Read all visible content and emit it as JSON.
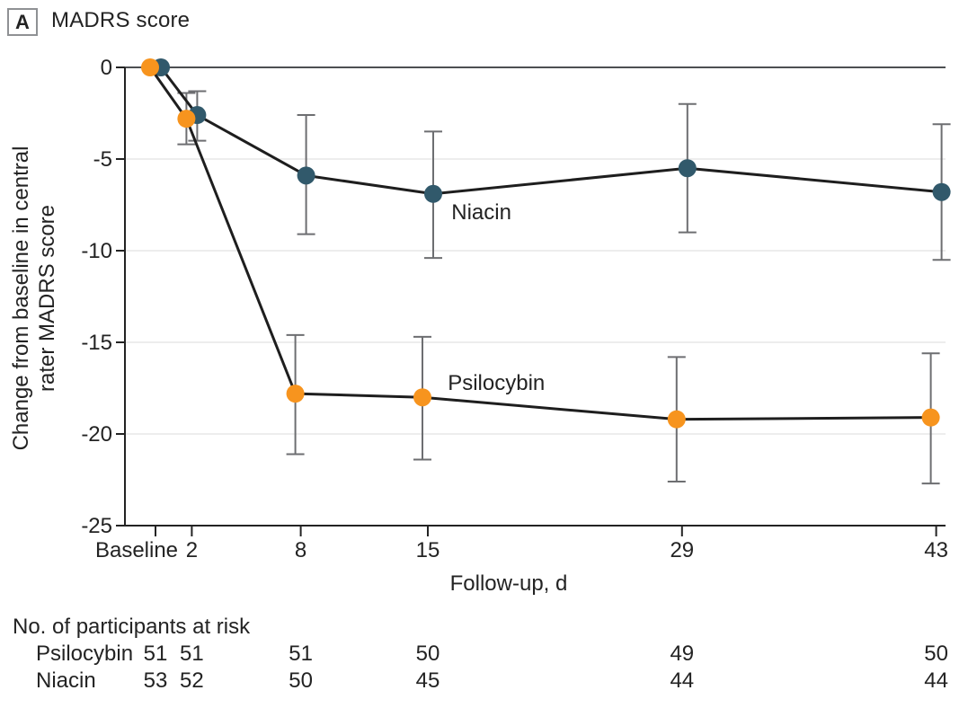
{
  "panel": {
    "label": "A",
    "title": "MADRS score"
  },
  "chart_data": {
    "type": "line",
    "x": [
      0,
      2,
      8,
      15,
      29,
      43
    ],
    "x_tick_labels": [
      "Baseline",
      "2",
      "8",
      "15",
      "29",
      "43"
    ],
    "xlabel": "Follow-up, d",
    "ylabel": "Change from baseline in central rater MADRS score",
    "ylabel_lines": [
      "Change from baseline in central",
      "rater MADRS score"
    ],
    "ylim": [
      -25,
      0
    ],
    "yticks": [
      0,
      -5,
      -10,
      -15,
      -20,
      -25
    ],
    "grid": "horizontal-light",
    "legend": "inline-labels",
    "line_color": "#1e1e1e",
    "error_bar_color": "#6d6e71",
    "zero_line_color": "#4d4f52",
    "gridline_color": "#e7e7e7",
    "axis_color": "#232323",
    "series": [
      {
        "name": "Niacin",
        "marker_color": "#31596b",
        "values": [
          0,
          -2.6,
          -5.9,
          -6.9,
          -5.5,
          -6.8
        ],
        "ci_upper": [
          null,
          -1.3,
          -2.6,
          -3.5,
          -2.0,
          -3.1
        ],
        "ci_lower": [
          null,
          -4.0,
          -9.1,
          -10.4,
          -9.0,
          -10.5
        ],
        "label_anchor": {
          "day": 16.3,
          "value": -7.9
        }
      },
      {
        "name": "Psilocybin",
        "marker_color": "#f7941e",
        "values": [
          0,
          -2.8,
          -17.8,
          -18.0,
          -19.2,
          -19.1
        ],
        "ci_upper": [
          null,
          -1.4,
          -14.6,
          -14.7,
          -15.8,
          -15.6
        ],
        "ci_lower": [
          null,
          -4.2,
          -21.1,
          -21.4,
          -22.6,
          -22.7
        ],
        "label_anchor": {
          "day": 16.1,
          "value": -17.2
        }
      }
    ]
  },
  "at_risk": {
    "header": "No. of participants at risk",
    "rows": [
      {
        "label": "Psilocybin",
        "counts": [
          "51",
          "51",
          "51",
          "50",
          "49",
          "50"
        ]
      },
      {
        "label": "Niacin",
        "counts": [
          "53",
          "52",
          "50",
          "45",
          "44",
          "44"
        ]
      }
    ]
  }
}
